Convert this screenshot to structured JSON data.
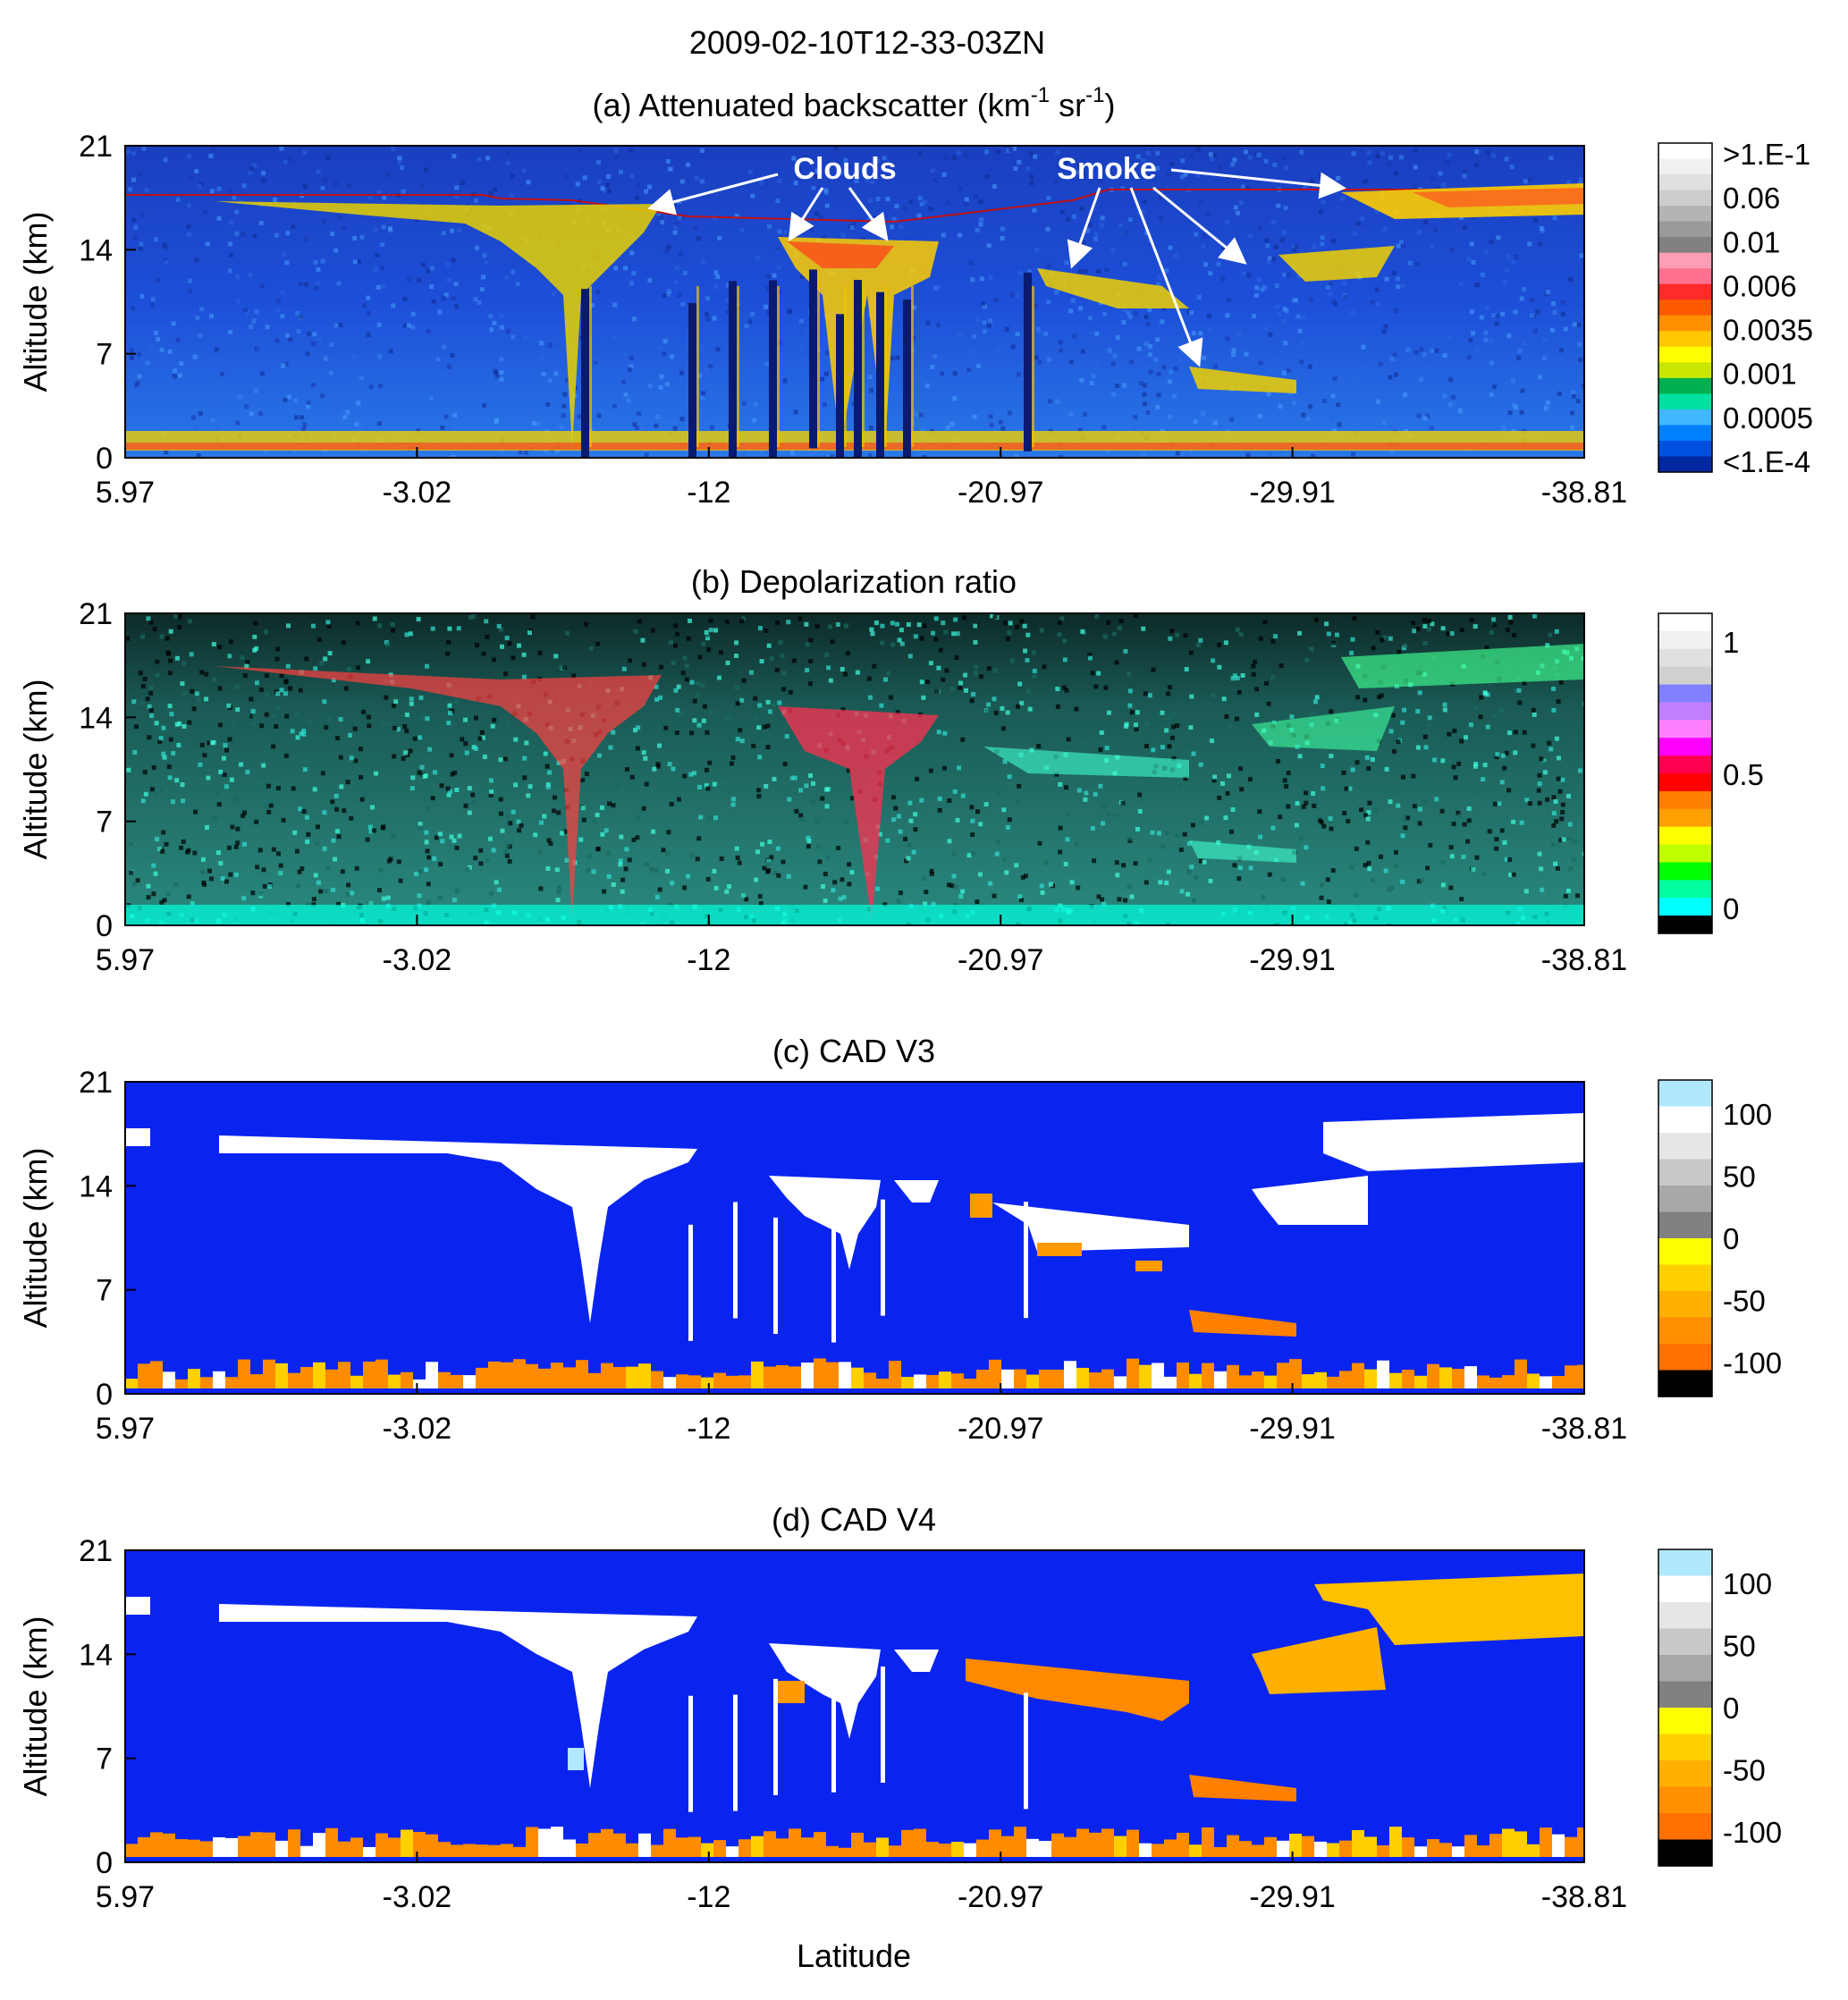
{
  "figure": {
    "title": "2009-02-10T12-33-03ZN",
    "xlabel": "Latitude",
    "ylabel": "Altitude (km)",
    "x_ticks": [
      "5.97",
      "-3.02",
      "-12",
      "-20.97",
      "-29.91",
      "-38.81"
    ],
    "y_ticks": [
      "0",
      "7",
      "14",
      "21"
    ]
  },
  "annotations": {
    "clouds": "Clouds",
    "smoke": "Smoke"
  },
  "chart_data": [
    {
      "type": "heatmap",
      "panel": "a",
      "title_main": "(a)  Attenuated backscatter (km",
      "title_sup1": "-1",
      "title_mid": " sr",
      "title_sup2": "-1",
      "title_end": ")",
      "xlim": [
        5.97,
        -38.81
      ],
      "ylim": [
        0,
        21
      ],
      "colorbar": {
        "ticks": [
          ">1.E-1",
          "0.06",
          "0.01",
          "0.006",
          "0.0035",
          "0.001",
          "0.0005",
          "<1.E-4"
        ],
        "colors": [
          "#ffffff",
          "#f0f0f0",
          "#e0e0e0",
          "#cccccc",
          "#b4b4b4",
          "#9a9a9a",
          "#808080",
          "#ff9db4",
          "#ff7090",
          "#ff2a2a",
          "#ff5a00",
          "#ff9000",
          "#ffc800",
          "#ffff00",
          "#c8e600",
          "#00b050",
          "#00e0a0",
          "#40b8ff",
          "#0080ff",
          "#0050e0",
          "#0028a0"
        ]
      }
    },
    {
      "type": "heatmap",
      "panel": "b",
      "title": "(b) Depolarization ratio",
      "xlim": [
        5.97,
        -38.81
      ],
      "ylim": [
        0,
        21
      ],
      "colorbar": {
        "ticks": [
          "1",
          "0.5",
          "0"
        ],
        "colors": [
          "#ffffff",
          "#f0f0f0",
          "#e0e0e0",
          "#d0d0d0",
          "#8080ff",
          "#c080ff",
          "#ff80ff",
          "#ff00ff",
          "#ff0050",
          "#ff0000",
          "#ff8000",
          "#ffa000",
          "#ffff00",
          "#c0ff00",
          "#00ff00",
          "#00ffa0",
          "#00ffff",
          "#000000"
        ]
      }
    },
    {
      "type": "heatmap",
      "panel": "c",
      "title": "(c) CAD V3",
      "xlim": [
        5.97,
        -38.81
      ],
      "ylim": [
        0,
        21
      ],
      "colorbar": {
        "ticks": [
          "100",
          "50",
          "0",
          "-50",
          "-100"
        ],
        "colors": [
          "#b0e8ff",
          "#ffffff",
          "#e6e6e6",
          "#c8c8c8",
          "#a8a8a8",
          "#808080",
          "#ffff00",
          "#ffd000",
          "#ffb000",
          "#ff9000",
          "#ff7000",
          "#000000"
        ]
      }
    },
    {
      "type": "heatmap",
      "panel": "d",
      "title": "(d) CAD V4",
      "xlim": [
        5.97,
        -38.81
      ],
      "ylim": [
        0,
        21
      ],
      "colorbar": {
        "ticks": [
          "100",
          "50",
          "0",
          "-50",
          "-100"
        ],
        "colors": [
          "#b0e8ff",
          "#ffffff",
          "#e6e6e6",
          "#c8c8c8",
          "#a8a8a8",
          "#808080",
          "#ffff00",
          "#ffd000",
          "#ffb000",
          "#ff9000",
          "#ff7000",
          "#000000"
        ]
      }
    }
  ]
}
